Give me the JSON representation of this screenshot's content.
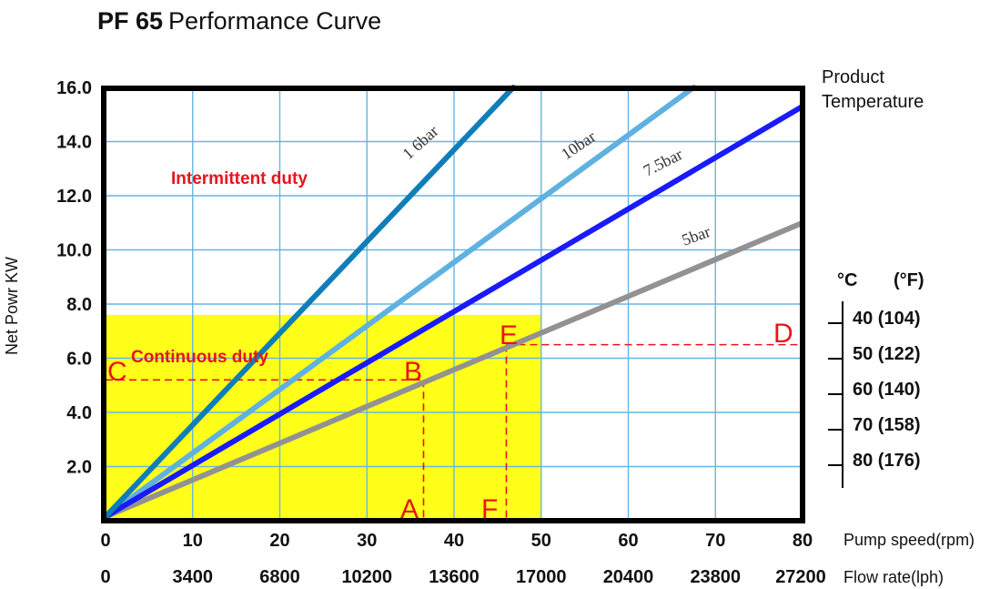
{
  "title_bold": "PF 65",
  "title_rest": "Performance Curve",
  "chart_data": {
    "type": "line",
    "ylabel": "Net Powr KW",
    "xlabel_speed": "Pump speed(rpm)",
    "xlabel_flow": "Flow rate(lph)",
    "xlim": [
      0,
      80
    ],
    "ylim": [
      0,
      16
    ],
    "y_ticks": [
      "16.0",
      "14.0",
      "12.0",
      "10.0",
      "8.0",
      "6.0",
      "4.0",
      "2.0"
    ],
    "x_ticks_speed": [
      "0",
      "10",
      "20",
      "30",
      "40",
      "50",
      "60",
      "70",
      "80"
    ],
    "x_ticks_flow": [
      "0",
      "3400",
      "6800",
      "10200",
      "13600",
      "17000",
      "20400",
      "23800",
      "27200"
    ],
    "grid": true,
    "series": [
      {
        "name": "1 6bar",
        "color": "#0f7eb8",
        "x": [
          0,
          46.8
        ],
        "y": [
          0.15,
          16.0
        ]
      },
      {
        "name": "10bar",
        "color": "#5fb1e0",
        "x": [
          0,
          67.5
        ],
        "y": [
          0.15,
          16.0
        ]
      },
      {
        "name": "7.5bar",
        "color": "#1a1aff",
        "x": [
          0,
          80
        ],
        "y": [
          0.15,
          15.3
        ]
      },
      {
        "name": "5bar",
        "color": "#929292",
        "x": [
          0,
          80
        ],
        "y": [
          0.15,
          11.0
        ]
      }
    ],
    "regions": [
      {
        "label": "Continuous duty",
        "x": [
          0,
          50
        ],
        "y": [
          0,
          7.6
        ],
        "color": "#ffff1a"
      },
      {
        "label": "Intermittent duty"
      }
    ],
    "annotations": [
      {
        "label": "A",
        "x": 36.5,
        "y": 0
      },
      {
        "label": "B",
        "x": 36.5,
        "y": 5.2
      },
      {
        "label": "C",
        "x": 0,
        "y": 5.2
      },
      {
        "label": "D",
        "x": 80,
        "y": 6.5
      },
      {
        "label": "E",
        "x": 46,
        "y": 6.5
      },
      {
        "label": "F",
        "x": 46,
        "y": 0
      }
    ],
    "temperature_scale": {
      "label_line1": "Product",
      "label_line2": "Temperature",
      "unit_c": "°C",
      "unit_f": "(°F)",
      "values": [
        "40 (104)",
        "50 (122)",
        "60 (140)",
        "70 (158)",
        "80 (176)"
      ]
    }
  }
}
